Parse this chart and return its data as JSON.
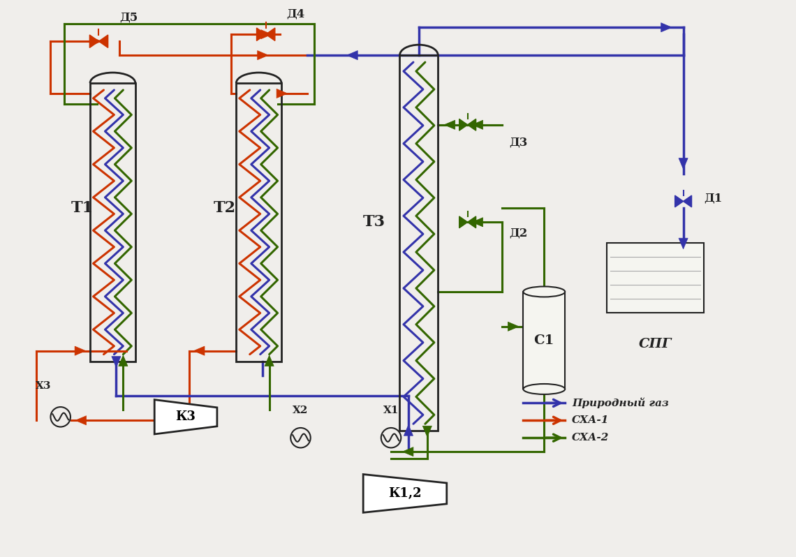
{
  "bg_color": "#f0eeeb",
  "colors": {
    "ng": "#3333aa",
    "mrc": "#cc3300",
    "mrc2": "#336600",
    "outline": "#222222"
  },
  "legend": {
    "Природный газ": "#3333aa",
    "СХА-1": "#cc3300",
    "СХА-2": "#336600"
  },
  "labels": {
    "T1": "Т1",
    "T2": "Т2",
    "T3": "Т3",
    "K1": "К1,2",
    "K3": "К3",
    "X1": "Х1",
    "X2": "Х2",
    "X3": "Х3",
    "D1": "Д1",
    "D2": "Д2",
    "D3": "Д3",
    "D4": "Д4",
    "D5": "Д5",
    "C1": "С1",
    "SPG": "СПГ"
  }
}
